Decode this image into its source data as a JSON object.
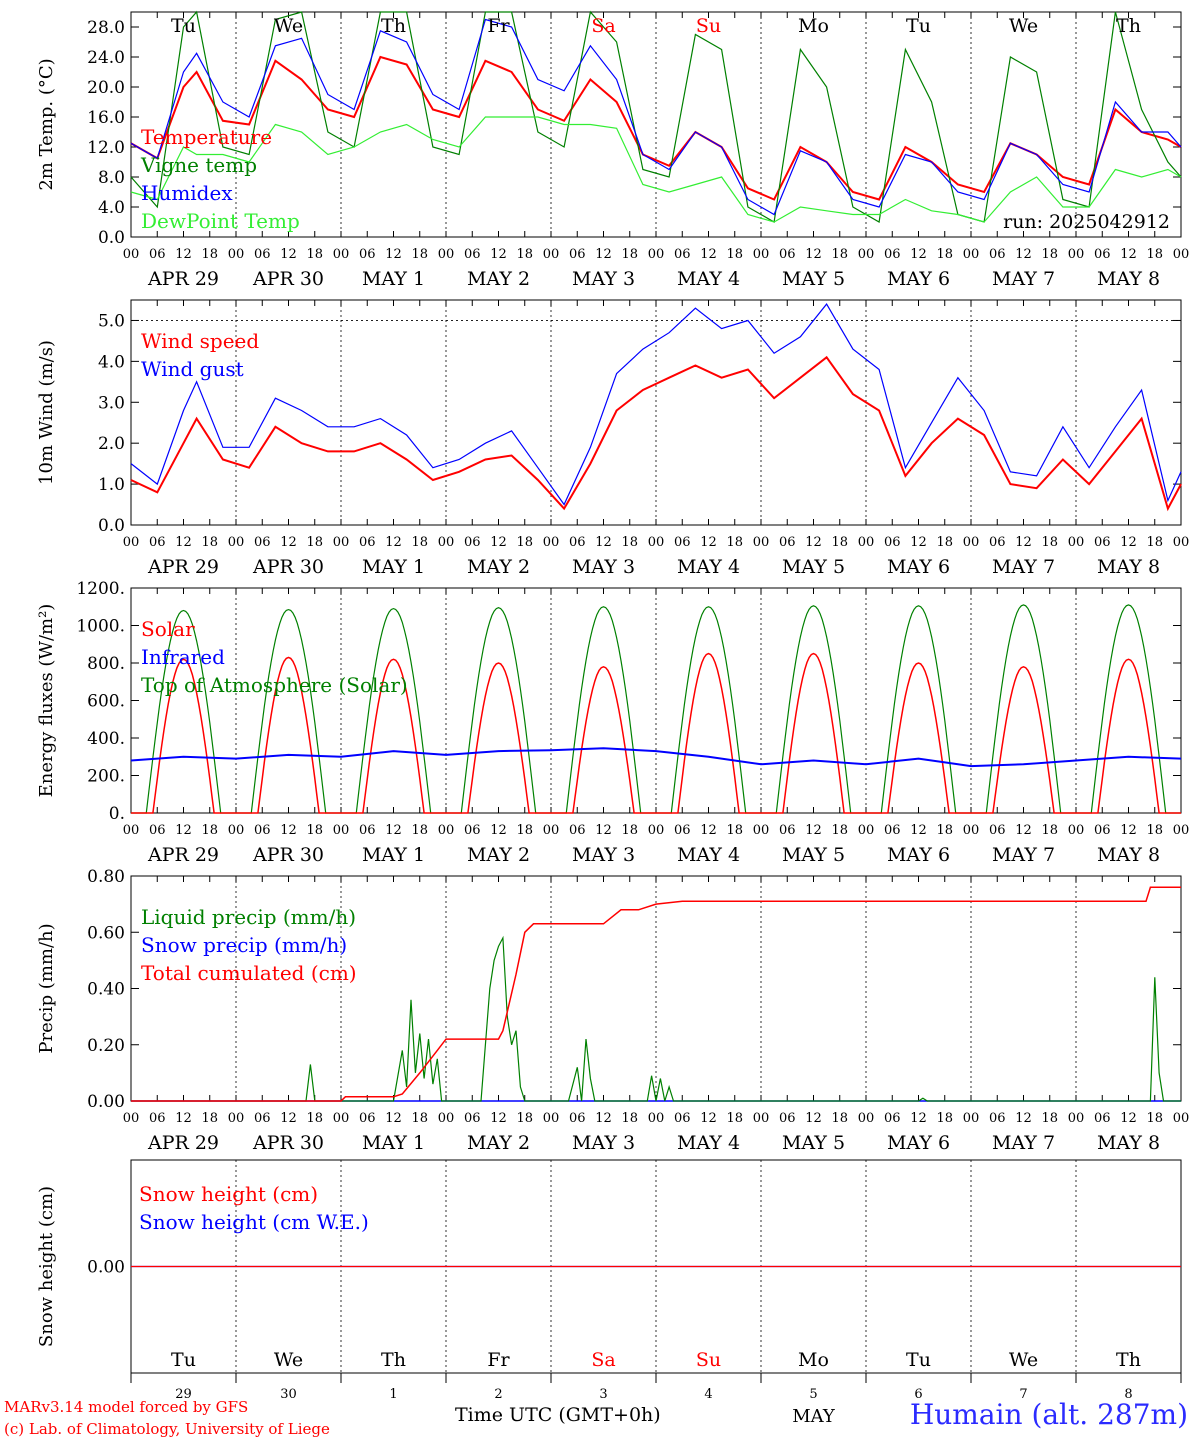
{
  "days": {
    "dates": [
      "APR 29",
      "APR 30",
      "MAY  1",
      "MAY  2",
      "MAY  3",
      "MAY  4",
      "MAY  5",
      "MAY  6",
      "MAY  7",
      "MAY  8"
    ],
    "weekdays": [
      "Tu",
      "We",
      "Th",
      "Fr",
      "Sa",
      "Su",
      "Mo",
      "Tu",
      "We",
      "Th"
    ],
    "weekend_flags": [
      false,
      false,
      false,
      false,
      true,
      true,
      false,
      false,
      false,
      false
    ],
    "numbers": [
      "29",
      "30",
      "1",
      "2",
      "3",
      "4",
      "5",
      "6",
      "7",
      "8"
    ],
    "hour_ticks": [
      "00",
      "06",
      "12",
      "18"
    ],
    "final_tick": "00",
    "month": "MAY"
  },
  "colors": {
    "red": "#ff0000",
    "green": "#008000",
    "blue": "#0000ff",
    "lightgreen": "#33ee33",
    "grid": "#000000"
  },
  "footer": {
    "model": "MARv3.14 model forced by GFS",
    "lab": "(c) Lab. of Climatology, University of Liege",
    "time_label": "Time UTC (GMT+0h)",
    "station": "Humain (alt. 287m)"
  },
  "chart_data": [
    {
      "type": "line",
      "ylabel": "2m Temp. (°C)",
      "ylim": [
        0,
        30
      ],
      "yticks": [
        "0.0",
        "4.0",
        "8.0",
        "12.0",
        "16.0",
        "20.0",
        "24.0",
        "28.0"
      ],
      "yticks_values": [
        0,
        4,
        8,
        12,
        16,
        20,
        24,
        28
      ],
      "run_label": "run: 2025042912",
      "x_unit": "hours since APR 29 00 UTC, 0..240",
      "series": [
        {
          "name": "Temperature",
          "color": "red",
          "x": [
            0,
            6,
            12,
            15,
            21,
            27,
            33,
            39,
            45,
            51,
            57,
            63,
            69,
            75,
            81,
            87,
            93,
            99,
            105,
            111,
            117,
            123,
            129,
            135,
            141,
            147,
            153,
            159,
            165,
            171,
            177,
            183,
            189,
            195,
            201,
            207,
            213,
            219,
            225,
            231,
            237,
            240
          ],
          "values": [
            12.5,
            10.5,
            20,
            22,
            15.5,
            15,
            23.5,
            21,
            17,
            16,
            24,
            23,
            17,
            16,
            23.5,
            22,
            17,
            15.5,
            21,
            18,
            11,
            9.5,
            14,
            12,
            6.5,
            5,
            12,
            10,
            6,
            5,
            12,
            10,
            7,
            6,
            12.5,
            11,
            8,
            7,
            17,
            14,
            13,
            12
          ]
        },
        {
          "name": "Vigne temp",
          "color": "green",
          "x": [
            0,
            6,
            12,
            15,
            21,
            27,
            33,
            39,
            45,
            51,
            57,
            63,
            69,
            75,
            81,
            87,
            93,
            99,
            105,
            111,
            117,
            123,
            129,
            135,
            141,
            147,
            153,
            159,
            165,
            171,
            177,
            183,
            189,
            195,
            201,
            207,
            213,
            219,
            225,
            231,
            237,
            240
          ],
          "values": [
            8,
            4,
            28,
            30,
            12,
            11,
            29,
            30,
            14,
            12,
            30,
            30,
            12,
            11,
            30,
            30,
            14,
            12,
            30,
            26,
            9,
            8,
            27,
            25,
            4,
            2,
            25,
            20,
            4,
            2,
            25,
            18,
            3,
            2,
            24,
            22,
            5,
            4,
            30,
            17,
            10,
            8
          ]
        },
        {
          "name": "Humidex",
          "color": "blue",
          "x": [
            0,
            6,
            12,
            15,
            21,
            27,
            33,
            39,
            45,
            51,
            57,
            63,
            69,
            75,
            81,
            87,
            93,
            99,
            105,
            111,
            117,
            123,
            129,
            135,
            141,
            147,
            153,
            159,
            165,
            171,
            177,
            183,
            189,
            195,
            201,
            207,
            213,
            219,
            225,
            231,
            237,
            240
          ],
          "values": [
            12.5,
            10.5,
            22,
            24.5,
            18,
            16,
            25.5,
            26.5,
            19,
            17,
            27.5,
            26,
            19,
            17,
            29,
            28,
            21,
            19.5,
            25.5,
            21,
            11,
            9,
            14,
            12,
            5,
            3,
            11.5,
            10,
            5,
            4,
            11,
            10,
            6,
            5,
            12.5,
            11,
            7,
            6,
            18,
            14,
            14,
            12
          ]
        },
        {
          "name": "DewPoint Temp",
          "color": "lightgreen",
          "x": [
            0,
            6,
            12,
            15,
            21,
            27,
            33,
            39,
            45,
            51,
            57,
            63,
            69,
            75,
            81,
            87,
            93,
            99,
            105,
            111,
            117,
            123,
            129,
            135,
            141,
            147,
            153,
            159,
            165,
            171,
            177,
            183,
            189,
            195,
            201,
            207,
            213,
            219,
            225,
            231,
            237,
            240
          ],
          "values": [
            6,
            5,
            12,
            11,
            11,
            10,
            15,
            14,
            11,
            12,
            14,
            15,
            13,
            12,
            16,
            16,
            16,
            15,
            15,
            14.5,
            7,
            6,
            7,
            8,
            3,
            2,
            4,
            3.5,
            3,
            3,
            5,
            3.5,
            3,
            2,
            6,
            8,
            4,
            4,
            9,
            8,
            9,
            8
          ]
        }
      ],
      "annotations": [
        {
          "text": "Tu"
        },
        {
          "text": "We"
        },
        {
          "text": "Th"
        },
        {
          "text": "Fr"
        },
        {
          "text": "Sa"
        },
        {
          "text": "Su"
        },
        {
          "text": "Mo"
        },
        {
          "text": "Tu"
        },
        {
          "text": "We"
        },
        {
          "text": "Th"
        }
      ]
    },
    {
      "type": "line",
      "ylabel": "10m Wind (m/s)",
      "ylim": [
        0,
        5.5
      ],
      "yticks": [
        "0.0",
        "1.0",
        "2.0",
        "3.0",
        "4.0",
        "5.0"
      ],
      "yticks_values": [
        0,
        1,
        2,
        3,
        4,
        5
      ],
      "dashed_ref": 5.0,
      "series": [
        {
          "name": "Wind speed",
          "color": "red",
          "x": [
            0,
            6,
            12,
            15,
            21,
            27,
            33,
            39,
            45,
            51,
            57,
            63,
            69,
            75,
            81,
            87,
            93,
            99,
            105,
            111,
            117,
            123,
            129,
            135,
            141,
            147,
            153,
            159,
            165,
            171,
            177,
            183,
            189,
            195,
            201,
            207,
            213,
            219,
            225,
            231,
            237,
            240
          ],
          "values": [
            1.1,
            0.8,
            2.0,
            2.6,
            1.6,
            1.4,
            2.4,
            2.0,
            1.8,
            1.8,
            2.0,
            1.6,
            1.1,
            1.3,
            1.6,
            1.7,
            1.1,
            0.4,
            1.5,
            2.8,
            3.3,
            3.6,
            3.9,
            3.6,
            3.8,
            3.1,
            3.6,
            4.1,
            3.2,
            2.8,
            1.2,
            2.0,
            2.6,
            2.2,
            1.0,
            0.9,
            1.6,
            1.0,
            1.8,
            2.6,
            0.4,
            1.0
          ]
        },
        {
          "name": "Wind gust",
          "color": "blue",
          "x": [
            0,
            6,
            12,
            15,
            21,
            27,
            33,
            39,
            45,
            51,
            57,
            63,
            69,
            75,
            81,
            87,
            93,
            99,
            105,
            111,
            117,
            123,
            129,
            135,
            141,
            147,
            153,
            159,
            165,
            171,
            177,
            183,
            189,
            195,
            201,
            207,
            213,
            219,
            225,
            231,
            237,
            240
          ],
          "values": [
            1.5,
            1.0,
            2.8,
            3.5,
            1.9,
            1.9,
            3.1,
            2.8,
            2.4,
            2.4,
            2.6,
            2.2,
            1.4,
            1.6,
            2.0,
            2.3,
            1.4,
            0.5,
            1.9,
            3.7,
            4.3,
            4.7,
            5.3,
            4.8,
            5.0,
            4.2,
            4.6,
            5.4,
            4.3,
            3.8,
            1.4,
            2.5,
            3.6,
            2.8,
            1.3,
            1.2,
            2.4,
            1.4,
            2.4,
            3.3,
            0.6,
            1.3
          ]
        }
      ]
    },
    {
      "type": "line",
      "ylabel": "Energy fluxes (W/m²)",
      "ylim": [
        0,
        1200
      ],
      "yticks": [
        "0.",
        "200.",
        "400.",
        "600.",
        "800.",
        "1000.",
        "1200."
      ],
      "yticks_values": [
        0,
        200,
        400,
        600,
        800,
        1000,
        1200
      ],
      "series": [
        {
          "name": "Solar",
          "color": "red",
          "peaks": [
            820,
            830,
            820,
            800,
            780,
            850,
            850,
            800,
            780,
            820
          ]
        },
        {
          "name": "Infrared",
          "color": "blue",
          "x": [
            0,
            12,
            24,
            36,
            48,
            60,
            72,
            84,
            96,
            108,
            120,
            132,
            144,
            156,
            168,
            180,
            192,
            204,
            216,
            228,
            240
          ],
          "values": [
            280,
            300,
            290,
            310,
            300,
            330,
            310,
            330,
            335,
            345,
            330,
            300,
            260,
            280,
            260,
            290,
            250,
            260,
            280,
            300,
            290
          ]
        },
        {
          "name": "Top of Atmosphere (Solar)",
          "color": "green",
          "peaks": [
            1080,
            1085,
            1090,
            1095,
            1100,
            1100,
            1105,
            1105,
            1110,
            1110
          ]
        }
      ]
    },
    {
      "type": "line",
      "ylabel": "Precip (mm/h)",
      "ylim": [
        0,
        0.8
      ],
      "yticks": [
        "0.00",
        "0.20",
        "0.40",
        "0.60",
        "0.80"
      ],
      "yticks_values": [
        0,
        0.2,
        0.4,
        0.6,
        0.8
      ],
      "series": [
        {
          "name": "Liquid precip (mm/h)",
          "color": "green",
          "x": [
            0,
            40,
            41,
            42,
            60,
            62,
            63,
            64,
            65,
            66,
            67,
            68,
            69,
            70,
            71,
            72,
            73,
            76,
            80,
            82,
            83,
            84,
            85,
            86,
            87,
            88,
            89,
            90,
            91,
            92,
            100,
            102,
            103,
            104,
            105,
            106,
            107,
            108,
            109,
            118,
            119,
            120,
            121,
            122,
            123,
            124,
            180,
            181,
            182,
            233,
            234,
            235,
            236,
            240
          ],
          "values": [
            0,
            0,
            0.13,
            0,
            0,
            0.18,
            0.05,
            0.36,
            0.1,
            0.24,
            0.08,
            0.22,
            0.06,
            0.15,
            0,
            0,
            0,
            0,
            0,
            0.4,
            0.5,
            0.55,
            0.58,
            0.3,
            0.2,
            0.25,
            0.05,
            0,
            0,
            0,
            0,
            0.12,
            0,
            0.22,
            0.08,
            0,
            0,
            0,
            0,
            0,
            0.09,
            0,
            0.08,
            0,
            0.05,
            0,
            0,
            0.01,
            0,
            0,
            0.44,
            0.1,
            0,
            0
          ]
        },
        {
          "name": "Snow precip (mm/h)",
          "color": "blue",
          "x": [
            0,
            240
          ],
          "values": [
            0,
            0
          ]
        },
        {
          "name": "Total cumulated (cm)",
          "color": "red",
          "x": [
            0,
            48,
            49,
            60,
            62,
            66,
            70,
            72,
            84,
            85,
            88,
            90,
            92,
            96,
            108,
            112,
            116,
            120,
            126,
            132,
            168,
            216,
            232,
            233,
            240
          ],
          "values": [
            0,
            0,
            0.015,
            0.015,
            0.025,
            0.1,
            0.18,
            0.22,
            0.22,
            0.25,
            0.45,
            0.6,
            0.63,
            0.63,
            0.63,
            0.68,
            0.68,
            0.7,
            0.71,
            0.71,
            0.71,
            0.71,
            0.71,
            0.76,
            0.76
          ]
        }
      ]
    },
    {
      "type": "line",
      "ylabel": "Snow height (cm)",
      "ylim": [
        -1,
        1
      ],
      "yticks": [
        "0.00"
      ],
      "yticks_values": [
        0
      ],
      "series": [
        {
          "name": "Snow height (cm)",
          "color": "red",
          "x": [
            0,
            240
          ],
          "values": [
            0,
            0
          ]
        },
        {
          "name": "Snow height (cm W.E.)",
          "color": "blue",
          "x": [
            0,
            240
          ],
          "values": [
            0,
            0
          ]
        }
      ]
    }
  ]
}
